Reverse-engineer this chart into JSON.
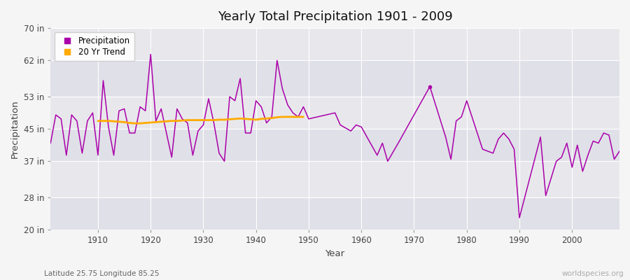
{
  "title": "Yearly Total Precipitation 1901 - 2009",
  "xlabel": "Year",
  "ylabel": "Precipitation",
  "subtitle": "Latitude 25.75 Longitude 85.25",
  "watermark": "worldspecies.org",
  "fig_bg": "#f5f5f5",
  "plot_bg": "#e8e8ec",
  "line_color": "#aa00aa",
  "trend_color": "#ffaa00",
  "ylim": [
    20,
    70
  ],
  "yticks": [
    20,
    28,
    37,
    45,
    53,
    62,
    70
  ],
  "ytick_labels": [
    "20 in",
    "28 in",
    "37 in",
    "45 in",
    "53 in",
    "62 in",
    "70 in"
  ],
  "xlim": [
    1901,
    2009
  ],
  "years": [
    1901,
    1902,
    1903,
    1904,
    1905,
    1906,
    1907,
    1908,
    1909,
    1910,
    1911,
    1912,
    1913,
    1914,
    1915,
    1916,
    1917,
    1918,
    1919,
    1920,
    1921,
    1922,
    1923,
    1924,
    1925,
    1926,
    1927,
    1928,
    1929,
    1930,
    1931,
    1932,
    1933,
    1934,
    1935,
    1936,
    1937,
    1938,
    1939,
    1940,
    1941,
    1942,
    1943,
    1944,
    1945,
    1946,
    1947,
    1948,
    1949,
    1950,
    1955,
    1956,
    1958,
    1959,
    1960,
    1963,
    1964,
    1965,
    1967,
    1973,
    1976,
    1977,
    1978,
    1979,
    1980,
    1982,
    1983,
    1985,
    1986,
    1987,
    1988,
    1989,
    1990,
    1994,
    1995,
    1997,
    1998,
    1999,
    2000,
    2001,
    2002,
    2003,
    2004,
    2005,
    2006,
    2007,
    2008,
    2009
  ],
  "precip": [
    41.5,
    48.5,
    47.5,
    38.5,
    48.5,
    47.0,
    39.0,
    47.0,
    49.0,
    38.5,
    57.0,
    45.5,
    38.5,
    49.5,
    50.0,
    44.0,
    44.0,
    50.5,
    49.5,
    63.5,
    47.0,
    50.0,
    44.0,
    38.0,
    50.0,
    47.5,
    46.5,
    38.5,
    44.5,
    46.0,
    52.5,
    46.5,
    39.0,
    37.0,
    53.0,
    52.0,
    57.5,
    44.0,
    44.0,
    52.0,
    50.5,
    46.5,
    48.0,
    62.0,
    55.0,
    51.0,
    49.0,
    48.0,
    50.5,
    47.5,
    49.0,
    46.0,
    44.5,
    46.0,
    45.5,
    38.5,
    41.5,
    37.0,
    41.5,
    55.5,
    43.0,
    37.5,
    47.0,
    48.0,
    52.0,
    44.0,
    40.0,
    39.0,
    42.5,
    44.0,
    42.5,
    40.0,
    23.0,
    43.0,
    28.5,
    37.0,
    38.0,
    41.5,
    35.5,
    41.0,
    34.5,
    38.5,
    42.0,
    41.5,
    44.0,
    43.5,
    37.5,
    39.5
  ],
  "trend_years": [
    1910,
    1911,
    1912,
    1913,
    1914,
    1915,
    1916,
    1917,
    1918,
    1919,
    1920,
    1921,
    1922,
    1923,
    1924,
    1925,
    1926,
    1927,
    1928,
    1929,
    1930,
    1931,
    1932,
    1933,
    1934,
    1935,
    1936,
    1937,
    1938,
    1939,
    1940,
    1941,
    1942,
    1943,
    1944,
    1945,
    1946,
    1947,
    1948,
    1949
  ],
  "trend_vals": [
    47.0,
    47.0,
    47.0,
    46.9,
    46.8,
    46.7,
    46.5,
    46.4,
    46.4,
    46.5,
    46.6,
    46.7,
    46.8,
    46.9,
    47.0,
    47.0,
    47.1,
    47.2,
    47.2,
    47.2,
    47.2,
    47.2,
    47.2,
    47.3,
    47.3,
    47.4,
    47.5,
    47.6,
    47.5,
    47.4,
    47.3,
    47.5,
    47.6,
    47.7,
    47.9,
    48.0,
    48.0,
    48.0,
    48.0,
    48.0
  ],
  "dot_year": 1973,
  "dot_val": 55.5
}
